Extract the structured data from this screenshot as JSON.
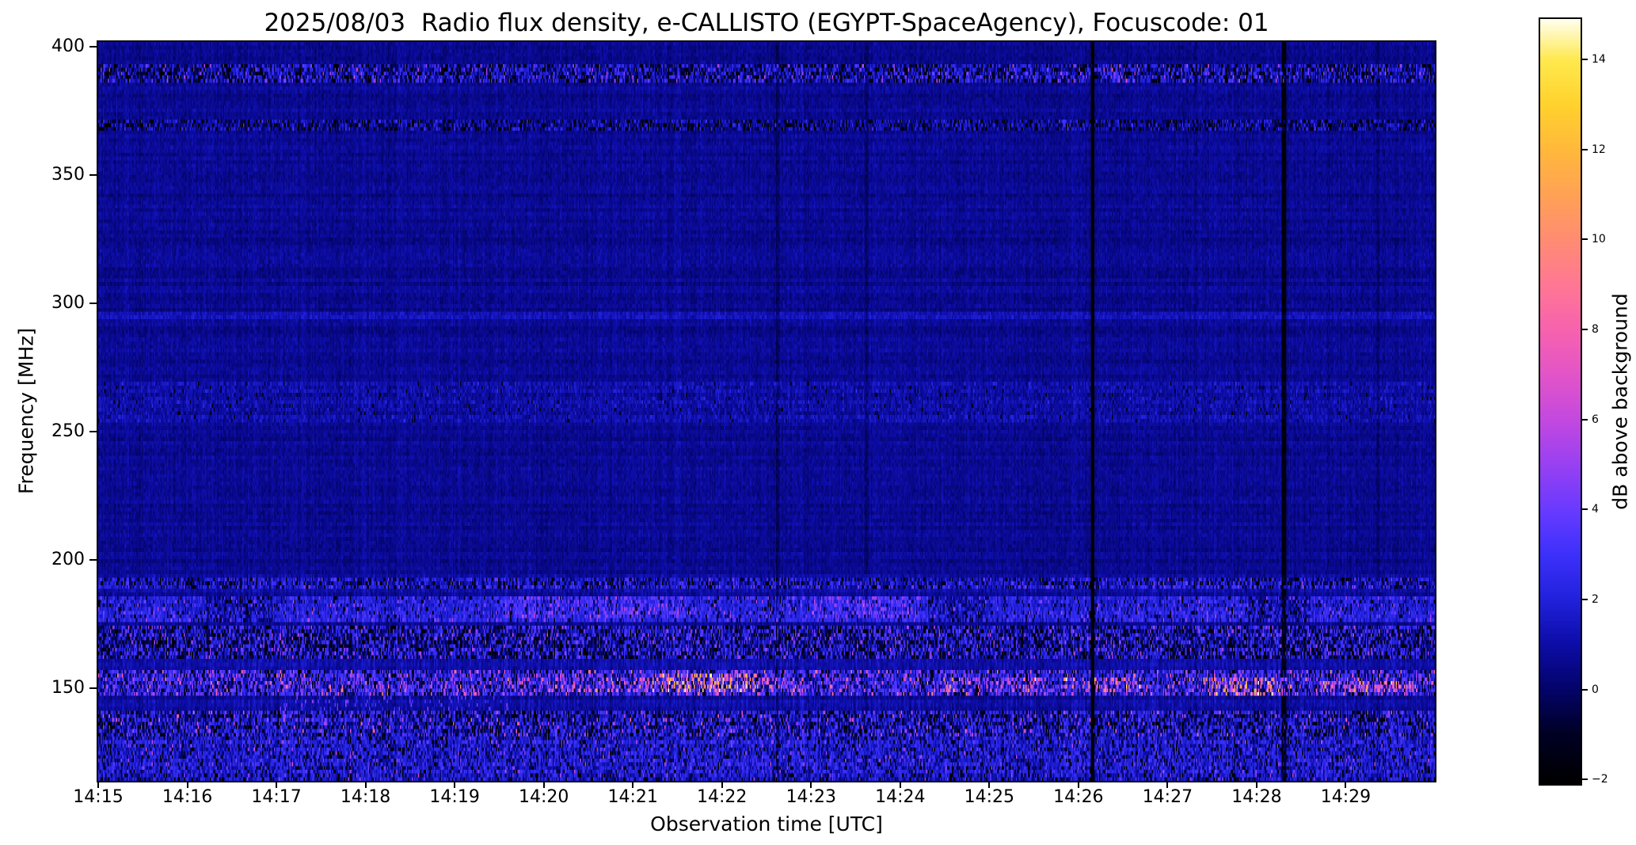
{
  "figure": {
    "background_color": "#ffffff",
    "text_color": "#000000"
  },
  "chart_data": {
    "type": "heatmap",
    "title": "2025/08/03  Radio flux density, e-CALLISTO (EGYPT-SpaceAgency), Focuscode: 01",
    "xlabel": "Observation time [UTC]",
    "ylabel": "Frequency [MHz]",
    "colorbar_label": "dB above background",
    "x_ticks": [
      "14:15",
      "14:16",
      "14:17",
      "14:18",
      "14:19",
      "14:20",
      "14:21",
      "14:22",
      "14:23",
      "14:24",
      "14:25",
      "14:26",
      "14:27",
      "14:28",
      "14:29"
    ],
    "x_minutes_span": 15,
    "y_ticks": [
      400,
      350,
      300,
      250,
      200,
      150
    ],
    "freq_axis_range_mhz": [
      114,
      402
    ],
    "value_range_db": [
      -2.1,
      14.9
    ],
    "colorbar_ticks": [
      -2,
      0,
      2,
      4,
      6,
      8,
      10,
      12,
      14
    ],
    "background_level_db": 0.6,
    "grid": false,
    "legend": "colorbar-right",
    "colormap_stops": [
      [
        0.0,
        "#000000"
      ],
      [
        0.065,
        "#010125"
      ],
      [
        0.124,
        "#04046b"
      ],
      [
        0.182,
        "#0d0da8"
      ],
      [
        0.241,
        "#2222dd"
      ],
      [
        0.3,
        "#3d31fb"
      ],
      [
        0.36,
        "#6b3bff"
      ],
      [
        0.42,
        "#9b41f2"
      ],
      [
        0.476,
        "#c449e0"
      ],
      [
        0.535,
        "#e355c9"
      ],
      [
        0.594,
        "#f763af"
      ],
      [
        0.65,
        "#ff7796"
      ],
      [
        0.71,
        "#ff8c74"
      ],
      [
        0.77,
        "#ffa256"
      ],
      [
        0.83,
        "#ffb93c"
      ],
      [
        0.888,
        "#ffd22e"
      ],
      [
        0.947,
        "#ffe94e"
      ],
      [
        1.0,
        "#ffffee"
      ]
    ],
    "features": {
      "bands": [
        {
          "f1": 386,
          "f2": 393.5,
          "add": 0.9,
          "noise": 1.6,
          "sp": 0.12,
          "sa": 2.5,
          "dp": 0.28
        },
        {
          "f1": 367.5,
          "f2": 371.5,
          "add": 0.25,
          "noise": 1.1,
          "sp": 0.25,
          "sa": 1.2,
          "dp": 0.25
        },
        {
          "f1": 294.5,
          "f2": 296.5,
          "add": 0.8,
          "noise": 0.3,
          "sp": 0,
          "sa": 0,
          "dp": 0
        },
        {
          "f1": 253,
          "f2": 270,
          "add": 0.3,
          "noise": 0.55,
          "sp": 0.05,
          "sa": 0.8,
          "dp": 0.02
        },
        {
          "f1": 189.5,
          "f2": 192.5,
          "add": 0.7,
          "noise": 1.1,
          "sp": 0.2,
          "sa": 1.8,
          "dp": 0.22
        },
        {
          "f1": 176,
          "f2": 186,
          "add": 1.2,
          "noise": 0.9,
          "sp": 0.08,
          "sa": 2.2,
          "dp": 0.1
        },
        {
          "f1": 162,
          "f2": 174,
          "add": 0.7,
          "noise": 1.9,
          "sp": 0.15,
          "sa": 2.2,
          "dp": 0.32
        },
        {
          "f1": 147,
          "f2": 156.5,
          "add": 1.7,
          "noise": 1.9,
          "sp": 0.1,
          "sa": 4.5,
          "dp": 0.25
        },
        {
          "f1": 132,
          "f2": 142,
          "add": 0.9,
          "noise": 1.6,
          "sp": 0.06,
          "sa": 4.0,
          "dp": 0.28
        },
        {
          "f1": 114,
          "f2": 131,
          "add": 0.9,
          "noise": 1.2,
          "sp": 0.05,
          "sa": 2.5,
          "dp": 0.15
        }
      ],
      "bursts": [
        {
          "t1": 2.0,
          "t2": 4.6,
          "f1": 134,
          "f2": 153,
          "add": 3.0,
          "p": 0.1
        },
        {
          "t1": 4.6,
          "t2": 5.7,
          "f1": 148,
          "f2": 155,
          "add": 4.0,
          "p": 0.3
        },
        {
          "t1": 5.7,
          "t2": 6.2,
          "f1": 149,
          "f2": 154,
          "add": 6.0,
          "p": 0.35
        },
        {
          "t1": 6.2,
          "t2": 7.4,
          "f1": 148,
          "f2": 156,
          "add": 9.5,
          "p": 0.38
        },
        {
          "t1": 7.4,
          "t2": 7.9,
          "f1": 149,
          "f2": 154,
          "add": 5.0,
          "p": 0.3
        },
        {
          "t1": 9.4,
          "t2": 10.6,
          "f1": 149,
          "f2": 154,
          "add": 5.0,
          "p": 0.28
        },
        {
          "t1": 10.8,
          "t2": 11.7,
          "f1": 148,
          "f2": 154,
          "add": 6.0,
          "p": 0.3
        },
        {
          "t1": 12.4,
          "t2": 13.4,
          "f1": 147,
          "f2": 155,
          "add": 8.5,
          "p": 0.35
        },
        {
          "t1": 13.7,
          "t2": 14.8,
          "f1": 148,
          "f2": 153,
          "add": 6.0,
          "p": 0.45
        },
        {
          "t1": 4.5,
          "t2": 6.6,
          "f1": 177,
          "f2": 186,
          "add": 1.8,
          "p": 0.5
        },
        {
          "t1": 8.0,
          "t2": 9.2,
          "f1": 177,
          "f2": 186,
          "add": 2.2,
          "p": 0.5
        },
        {
          "t1": 1.2,
          "t2": 1.95,
          "f1": 176,
          "f2": 186,
          "add": -2.0,
          "p": 0.55
        },
        {
          "t1": 9.3,
          "t2": 10.0,
          "f1": 176,
          "f2": 186,
          "add": -1.8,
          "p": 0.5
        },
        {
          "t1": 12.9,
          "t2": 13.6,
          "f1": 176,
          "f2": 186,
          "add": -1.8,
          "p": 0.5
        },
        {
          "t1": 0.0,
          "t2": 1.2,
          "f1": 386,
          "f2": 393.5,
          "add": -1.5,
          "p": 0.5
        },
        {
          "t1": 10.9,
          "t2": 11.6,
          "f1": 386,
          "f2": 393.5,
          "add": 1.5,
          "p": 0.4
        }
      ],
      "vertical_lines": [
        {
          "t": 11.15,
          "w": 1.2,
          "add": -5.0
        },
        {
          "t": 13.3,
          "w": 2.0,
          "add": -2.2
        },
        {
          "t": 7.62,
          "w": 1.2,
          "add": -0.8
        },
        {
          "t": 8.62,
          "w": 1.2,
          "add": -0.6
        },
        {
          "t": 4.97,
          "w": 0.8,
          "add": -0.5
        },
        {
          "t": 14.35,
          "w": 0.8,
          "add": -0.5
        }
      ]
    }
  }
}
